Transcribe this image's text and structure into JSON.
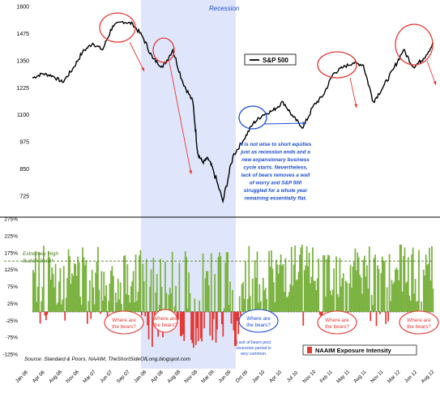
{
  "chart_data": [
    {
      "type": "line",
      "title": "",
      "legend": {
        "label": "S&P 500",
        "position": "top-right"
      },
      "recession_label": "Recession",
      "recession_span": [
        "2007-12",
        "2009-06"
      ],
      "y_ticks": [
        725,
        850,
        975,
        1100,
        1225,
        1350,
        1475,
        1600
      ],
      "ylim": [
        650,
        1600
      ],
      "xlim": [
        "2006-01",
        "2012-09"
      ],
      "series": [
        {
          "name": "S&P 500",
          "x": [
            "2006-01",
            "2006-03",
            "2006-05",
            "2006-07",
            "2006-09",
            "2006-11",
            "2007-01",
            "2007-03",
            "2007-05",
            "2007-07",
            "2007-09",
            "2007-11",
            "2008-01",
            "2008-03",
            "2008-05",
            "2008-07",
            "2008-09",
            "2008-10",
            "2008-11",
            "2008-12",
            "2009-01",
            "2009-03",
            "2009-05",
            "2009-07",
            "2009-09",
            "2009-11",
            "2010-01",
            "2010-03",
            "2010-05",
            "2010-07",
            "2010-09",
            "2010-11",
            "2011-01",
            "2011-03",
            "2011-05",
            "2011-07",
            "2011-09",
            "2011-11",
            "2012-01",
            "2012-03",
            "2012-05",
            "2012-07",
            "2012-09"
          ],
          "values": [
            1270,
            1290,
            1280,
            1250,
            1310,
            1390,
            1430,
            1400,
            1510,
            1530,
            1520,
            1460,
            1360,
            1320,
            1400,
            1250,
            1160,
            920,
            880,
            900,
            850,
            700,
            910,
            980,
            1060,
            1100,
            1120,
            1160,
            1090,
            1040,
            1140,
            1190,
            1290,
            1320,
            1340,
            1330,
            1160,
            1230,
            1310,
            1400,
            1320,
            1360,
            1430
          ]
        }
      ],
      "annotation": "It is not wise to short equities just as recession ends and a new expansionary business cycle starts. Nevertheless, lack of bears removes a wall of worry and S&P 500 struggled for a whole year remaining essentially flat."
    },
    {
      "type": "bar",
      "legend": {
        "label": "NAAIM Exposure Intensity",
        "position": "bottom-right"
      },
      "y_ticks": [
        -125,
        -75,
        -25,
        25,
        75,
        125,
        175,
        225,
        275
      ],
      "ylim": [
        -125,
        275
      ],
      "threshold": {
        "value": 150,
        "label": "Extremely High Bullish Belief"
      },
      "x_tick_labels": [
        "Jan 06",
        "Apr 06",
        "Aug 06",
        "Nov 06",
        "Mar 07",
        "Jun 07",
        "Sep 07",
        "Jan 08",
        "Apr 08",
        "Aug 08",
        "Nov 08",
        "Mar 09",
        "Jun 09",
        "Oct 09",
        "Jan 10",
        "Apr 10",
        "Jul 10",
        "Nov 10",
        "Feb 11",
        "May 11",
        "Aug 11",
        "Nov 11",
        "Mar 12",
        "Jun 12",
        "Aug 12"
      ],
      "bear_callouts": [
        "Where are the bears?",
        "Where are the bears?",
        "Where are the bears?",
        "Where are the bears?",
        "Where are the bears?"
      ],
      "bear_note": "Lack of bears post recession period is very common.",
      "source": "Source: Standard & Poors, NAAIM, TheShortSideOfLong.blogspot.com",
      "series": [
        {
          "name": "NAAIM Exposure Intensity",
          "positive_color": "#7cb342",
          "negative_color": "#e53935"
        }
      ]
    }
  ],
  "colors": {
    "recession_fill": "#dfe6fb",
    "line": "#000000",
    "green_fill": "#7cb342",
    "red_fill": "#e53935",
    "circle_red": "#e53935",
    "circle_blue": "#1e4fd0",
    "annotation_blue": "#1e4fd0"
  }
}
